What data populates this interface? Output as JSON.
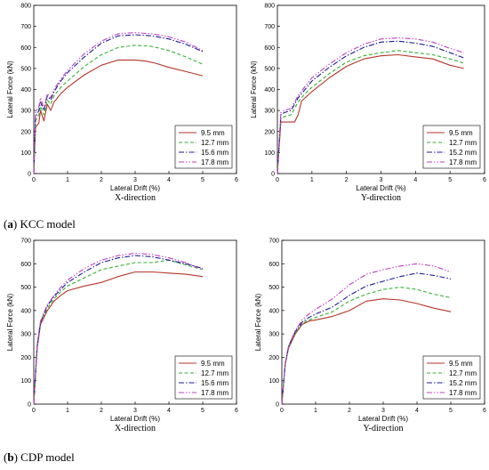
{
  "captions": [
    {
      "letter": "a",
      "text": " KCC model"
    },
    {
      "letter": "b",
      "text": " CDP model"
    }
  ],
  "chart_data": [
    {
      "type": "line",
      "panel": "KCC model, X-direction",
      "direction_label": "X-direction",
      "xlabel": "Lateral Drift (%)",
      "ylabel": "Lateral Force (kN)",
      "xlim": [
        0,
        6
      ],
      "ylim": [
        0,
        800
      ],
      "xticks": [
        0,
        1,
        2,
        3,
        4,
        5,
        6
      ],
      "yticks": [
        0,
        100,
        200,
        300,
        400,
        500,
        600,
        700,
        800
      ],
      "legend_position": "bottom-right",
      "series": [
        {
          "name": "9.5 mm",
          "color": "#b5352b",
          "dash": "solid",
          "x": [
            0,
            0.05,
            0.15,
            0.2,
            0.3,
            0.4,
            0.5,
            0.6,
            0.8,
            1.0,
            1.5,
            2.0,
            2.5,
            3.0,
            3.3,
            3.6,
            4.0,
            4.5,
            5.0
          ],
          "y": [
            0,
            220,
            240,
            300,
            250,
            330,
            300,
            340,
            380,
            410,
            470,
            515,
            540,
            540,
            535,
            525,
            505,
            485,
            465
          ]
        },
        {
          "name": "12.7 mm",
          "color": "#33b233",
          "dash": "dash",
          "x": [
            0,
            0.05,
            0.15,
            0.2,
            0.3,
            0.4,
            0.5,
            0.6,
            0.8,
            1.0,
            1.5,
            2.0,
            2.5,
            3.0,
            3.5,
            4.0,
            4.5,
            5.0
          ],
          "y": [
            0,
            250,
            280,
            320,
            280,
            350,
            330,
            370,
            410,
            440,
            510,
            565,
            600,
            610,
            605,
            585,
            555,
            520
          ]
        },
        {
          "name": "15.6 mm",
          "color": "#1c1c96",
          "dash": "dashdot",
          "x": [
            0,
            0.05,
            0.15,
            0.2,
            0.3,
            0.4,
            0.5,
            0.6,
            0.8,
            1.0,
            1.5,
            2.0,
            2.5,
            3.0,
            3.5,
            4.0,
            4.5,
            5.0
          ],
          "y": [
            0,
            270,
            300,
            340,
            300,
            370,
            350,
            390,
            440,
            480,
            555,
            620,
            655,
            660,
            655,
            640,
            615,
            580
          ]
        },
        {
          "name": "17.8 mm",
          "color": "#c03fc0",
          "dash": "dashdotdot",
          "x": [
            0,
            0.05,
            0.15,
            0.2,
            0.3,
            0.4,
            0.5,
            0.6,
            0.8,
            1.0,
            1.5,
            2.0,
            2.5,
            3.0,
            3.5,
            4.0,
            4.5,
            5.0
          ],
          "y": [
            0,
            290,
            320,
            360,
            310,
            380,
            360,
            400,
            450,
            490,
            570,
            630,
            665,
            670,
            665,
            650,
            625,
            585
          ]
        }
      ]
    },
    {
      "type": "line",
      "panel": "KCC model, Y-direction",
      "direction_label": "Y-direction",
      "xlabel": "Lateral Drift (%)",
      "ylabel": "Lateral Force (kN)",
      "xlim": [
        0,
        6
      ],
      "ylim": [
        0,
        800
      ],
      "xticks": [
        0,
        1,
        2,
        3,
        4,
        5,
        6
      ],
      "yticks": [
        0,
        100,
        200,
        300,
        400,
        500,
        600,
        700,
        800
      ],
      "legend_position": "bottom-right",
      "series": [
        {
          "name": "9.5 mm",
          "color": "#b5352b",
          "dash": "solid",
          "x": [
            0,
            0.1,
            0.2,
            0.5,
            0.6,
            0.7,
            1.0,
            1.5,
            2.0,
            2.5,
            3.0,
            3.5,
            4.0,
            4.5,
            5.0,
            5.4
          ],
          "y": [
            0,
            245,
            245,
            245,
            280,
            345,
            390,
            455,
            510,
            545,
            560,
            565,
            555,
            545,
            515,
            500
          ]
        },
        {
          "name": "12.7 mm",
          "color": "#33b233",
          "dash": "dash",
          "x": [
            0,
            0.1,
            0.2,
            0.4,
            0.6,
            0.8,
            1.0,
            1.5,
            2.0,
            2.5,
            3.0,
            3.5,
            4.0,
            4.5,
            5.0,
            5.4
          ],
          "y": [
            0,
            265,
            270,
            280,
            340,
            380,
            410,
            475,
            530,
            560,
            575,
            585,
            575,
            565,
            545,
            525
          ]
        },
        {
          "name": "15.2 mm",
          "color": "#1c1c96",
          "dash": "dashdot",
          "x": [
            0,
            0.1,
            0.2,
            0.4,
            0.6,
            0.8,
            1.0,
            1.5,
            2.0,
            2.5,
            3.0,
            3.5,
            4.0,
            4.5,
            5.0,
            5.4
          ],
          "y": [
            0,
            280,
            290,
            300,
            360,
            400,
            440,
            505,
            560,
            600,
            625,
            630,
            620,
            605,
            575,
            550
          ]
        },
        {
          "name": "17.8 mm",
          "color": "#c03fc0",
          "dash": "dashdotdot",
          "x": [
            0,
            0.1,
            0.2,
            0.4,
            0.6,
            0.8,
            1.0,
            1.5,
            2.0,
            2.5,
            3.0,
            3.5,
            4.0,
            4.5,
            5.0,
            5.4
          ],
          "y": [
            0,
            290,
            300,
            310,
            370,
            415,
            455,
            520,
            575,
            615,
            640,
            645,
            640,
            625,
            595,
            575
          ]
        }
      ]
    },
    {
      "type": "line",
      "panel": "CDP model, X-direction",
      "direction_label": "X-direction",
      "xlabel": "Lateral Drift (%)",
      "ylabel": "Lateral Force (kN)",
      "xlim": [
        0,
        6
      ],
      "ylim": [
        0,
        700
      ],
      "xticks": [
        0,
        1,
        2,
        3,
        4,
        5,
        6
      ],
      "yticks": [
        0,
        100,
        200,
        300,
        400,
        500,
        600,
        700
      ],
      "legend_position": "bottom-right",
      "series": [
        {
          "name": "9.5 mm",
          "color": "#b5352b",
          "dash": "solid",
          "x": [
            0,
            0.1,
            0.2,
            0.4,
            0.6,
            0.8,
            1.0,
            1.5,
            2.0,
            2.5,
            3.0,
            3.5,
            4.0,
            4.5,
            5.0
          ],
          "y": [
            0,
            240,
            340,
            400,
            440,
            465,
            485,
            505,
            520,
            545,
            565,
            565,
            560,
            555,
            545
          ]
        },
        {
          "name": "12.7 mm",
          "color": "#33b233",
          "dash": "dash",
          "x": [
            0,
            0.1,
            0.2,
            0.4,
            0.6,
            0.8,
            1.0,
            1.5,
            2.0,
            2.5,
            3.0,
            3.5,
            4.0,
            4.5,
            5.0
          ],
          "y": [
            0,
            245,
            345,
            410,
            450,
            480,
            505,
            540,
            575,
            590,
            605,
            605,
            615,
            595,
            575
          ]
        },
        {
          "name": "15.6 mm",
          "color": "#1c1c96",
          "dash": "dashdot",
          "x": [
            0,
            0.1,
            0.2,
            0.4,
            0.6,
            0.8,
            1.0,
            1.5,
            2.0,
            2.5,
            3.0,
            3.5,
            4.0,
            4.5,
            5.0
          ],
          "y": [
            0,
            250,
            350,
            420,
            460,
            490,
            520,
            565,
            605,
            625,
            635,
            630,
            615,
            600,
            580
          ]
        },
        {
          "name": "17.8 mm",
          "color": "#c03fc0",
          "dash": "dashdotdot",
          "x": [
            0,
            0.1,
            0.2,
            0.4,
            0.6,
            0.8,
            1.0,
            1.5,
            2.0,
            2.5,
            3.0,
            3.5,
            4.0,
            4.5,
            5.0
          ],
          "y": [
            0,
            255,
            355,
            425,
            465,
            500,
            530,
            580,
            615,
            635,
            645,
            640,
            625,
            605,
            575
          ]
        }
      ]
    },
    {
      "type": "line",
      "panel": "CDP model, Y-direction",
      "direction_label": "Y-direction",
      "xlabel": "Lateral Drift (%)",
      "ylabel": "Lateral Force (kN)",
      "xlim": [
        0,
        6
      ],
      "ylim": [
        0,
        700
      ],
      "xticks": [
        0,
        1,
        2,
        3,
        4,
        5,
        6
      ],
      "yticks": [
        0,
        100,
        200,
        300,
        400,
        500,
        600,
        700
      ],
      "legend_position": "bottom-right",
      "series": [
        {
          "name": "9.5 mm",
          "color": "#b5352b",
          "dash": "solid",
          "x": [
            0,
            0.1,
            0.2,
            0.4,
            0.6,
            0.8,
            1.0,
            1.5,
            2.0,
            2.5,
            3.0,
            3.5,
            4.0,
            4.5,
            5.0
          ],
          "y": [
            0,
            170,
            240,
            300,
            340,
            355,
            360,
            375,
            400,
            440,
            450,
            445,
            430,
            410,
            395
          ]
        },
        {
          "name": "12.7 mm",
          "color": "#33b233",
          "dash": "dash",
          "x": [
            0,
            0.1,
            0.2,
            0.4,
            0.6,
            0.8,
            1.0,
            1.5,
            2.0,
            2.5,
            3.0,
            3.5,
            4.0,
            4.5,
            5.0
          ],
          "y": [
            0,
            170,
            245,
            305,
            345,
            360,
            370,
            395,
            440,
            470,
            490,
            500,
            490,
            470,
            455
          ]
        },
        {
          "name": "15.2 mm",
          "color": "#1c1c96",
          "dash": "dashdot",
          "x": [
            0,
            0.1,
            0.2,
            0.4,
            0.6,
            0.8,
            1.0,
            1.5,
            2.0,
            2.5,
            3.0,
            3.5,
            4.0,
            4.5,
            5.0
          ],
          "y": [
            0,
            172,
            248,
            310,
            350,
            370,
            385,
            415,
            465,
            505,
            525,
            545,
            560,
            550,
            535
          ]
        },
        {
          "name": "17.8 mm",
          "color": "#c03fc0",
          "dash": "dashdotdot",
          "x": [
            0,
            0.1,
            0.2,
            0.4,
            0.6,
            0.8,
            1.0,
            1.5,
            2.0,
            2.5,
            3.0,
            3.5,
            4.0,
            4.5,
            5.0
          ],
          "y": [
            0,
            175,
            250,
            315,
            360,
            385,
            405,
            450,
            510,
            555,
            575,
            590,
            600,
            590,
            565
          ]
        }
      ]
    }
  ]
}
